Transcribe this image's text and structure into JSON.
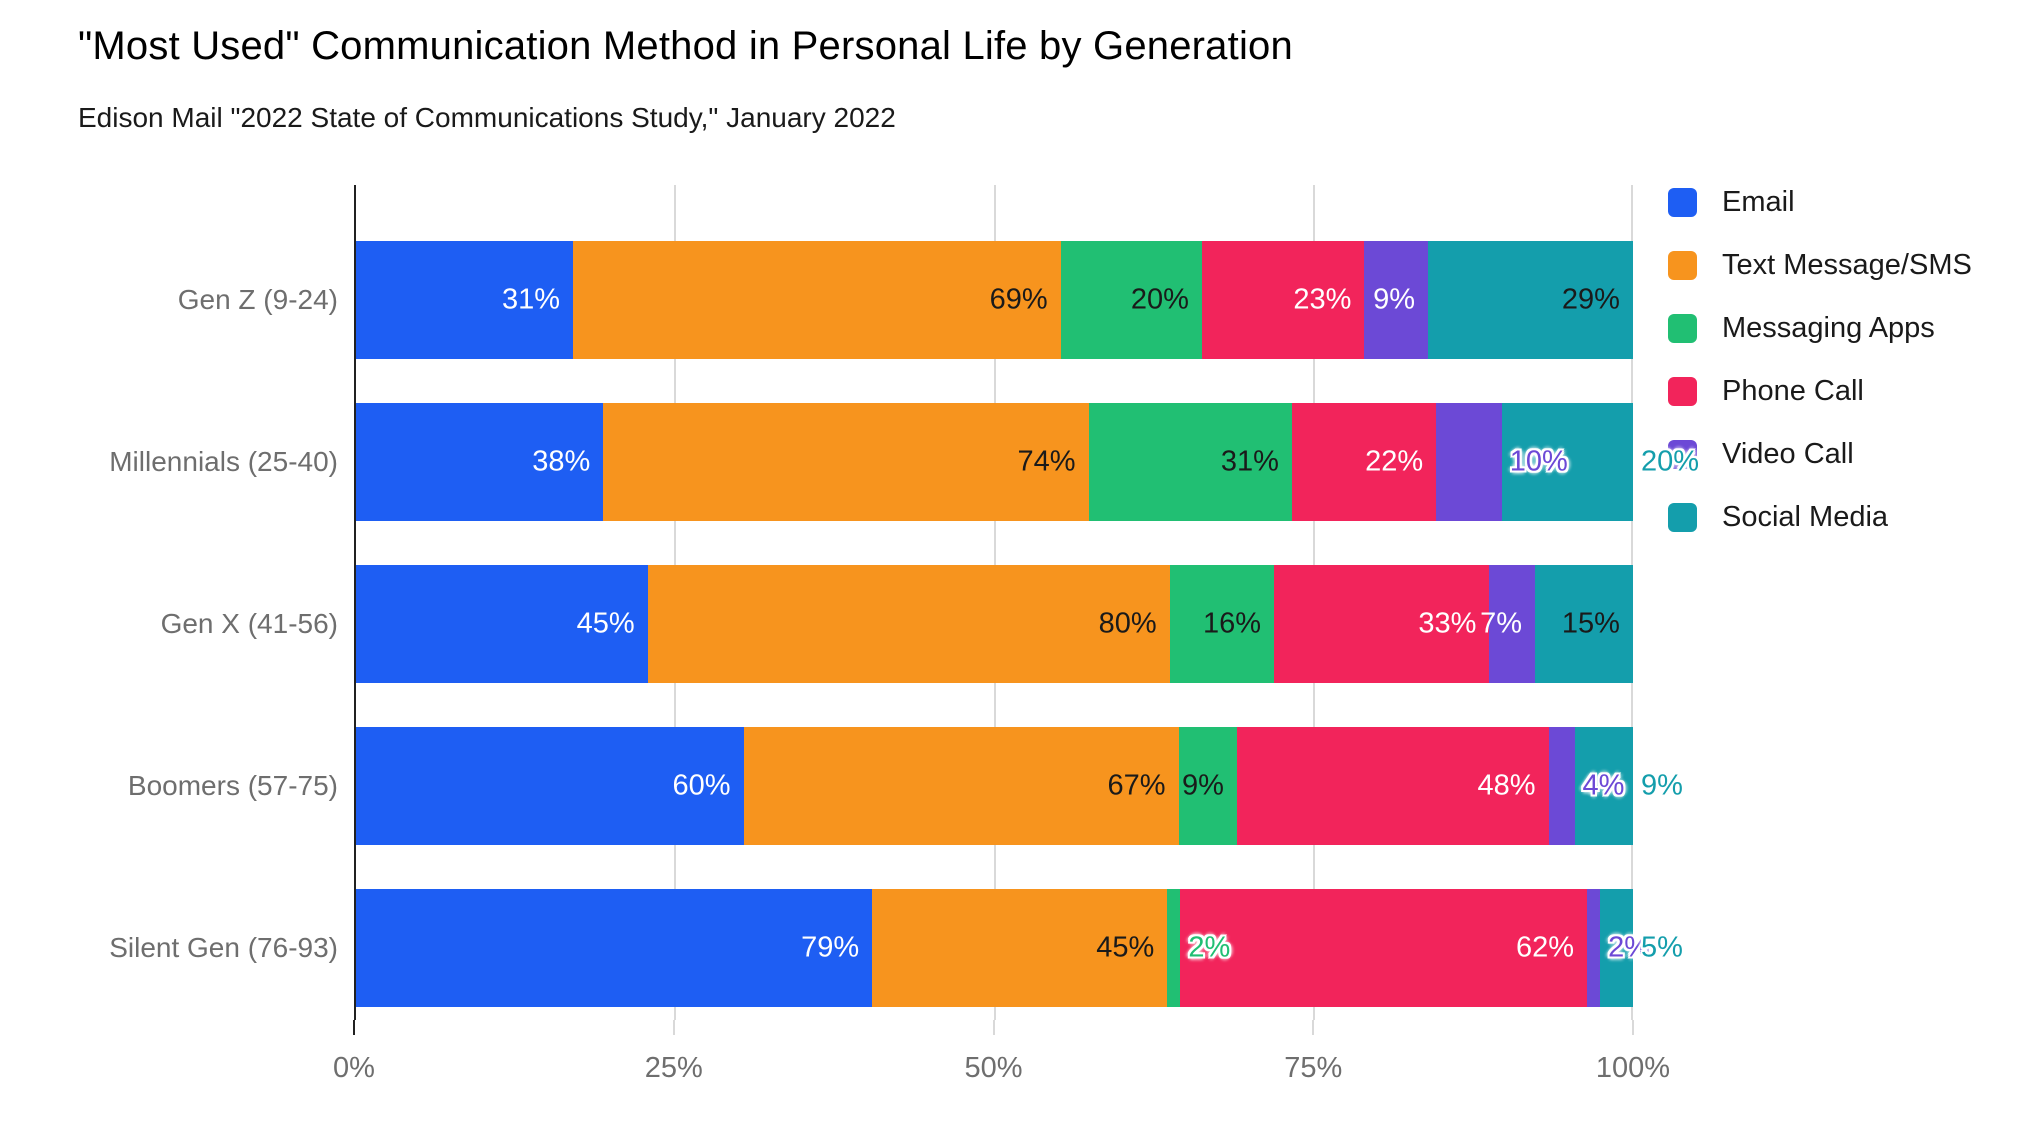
{
  "chart_data": {
    "type": "bar",
    "orientation": "horizontal",
    "stacking": "percent-normalized",
    "title": "\"Most Used\" Communication Method in Personal Life by Generation",
    "subtitle": "Edison Mail \"2022 State of Communications Study,\" January 2022",
    "categories": [
      "Gen Z (9-24)",
      "Millennials (25-40)",
      "Gen X (41-56)",
      "Boomers (57-75)",
      "Silent Gen (76-93)"
    ],
    "series": [
      {
        "name": "Email",
        "color": "#1E5EF3",
        "values": [
          31,
          38,
          45,
          60,
          79
        ],
        "label_styles": [
          "in-white",
          "in-white",
          "in-white",
          "in-white",
          "in-white"
        ]
      },
      {
        "name": "Text Message/SMS",
        "color": "#F7941E",
        "values": [
          69,
          74,
          80,
          67,
          45
        ],
        "label_styles": [
          "in-dark",
          "in-dark",
          "in-dark",
          "in-dark",
          "in-dark"
        ]
      },
      {
        "name": "Messaging Apps",
        "color": "#21BF73",
        "values": [
          20,
          31,
          16,
          9,
          2
        ],
        "label_styles": [
          "in-dark",
          "in-dark",
          "in-dark",
          "in-dark",
          "out"
        ]
      },
      {
        "name": "Phone Call",
        "color": "#F2245B",
        "values": [
          23,
          22,
          33,
          48,
          62
        ],
        "label_styles": [
          "in-white",
          "in-white",
          "in-white",
          "in-white",
          "in-white"
        ]
      },
      {
        "name": "Video Call",
        "color": "#6C49D6",
        "values": [
          9,
          10,
          7,
          4,
          2
        ],
        "label_styles": [
          "in-white",
          "out",
          "in-white",
          "out",
          "out"
        ]
      },
      {
        "name": "Social Media",
        "color": "#149EAC",
        "values": [
          29,
          20,
          15,
          9,
          5
        ],
        "label_styles": [
          "in-dark",
          "out",
          "in-dark",
          "out",
          "out"
        ]
      }
    ],
    "value_suffix": "%",
    "x_axis": {
      "tick_labels": [
        "0%",
        "25%",
        "50%",
        "75%",
        "100%"
      ],
      "tick_positions": [
        0,
        25,
        50,
        75,
        100
      ],
      "range": [
        0,
        100
      ],
      "grid": true
    },
    "legend_position": "right",
    "style": {
      "grid_color": "#d9d9d9",
      "axis_color": "#212121",
      "axis_text_color": "#6e6e6e",
      "background": "#ffffff"
    }
  }
}
